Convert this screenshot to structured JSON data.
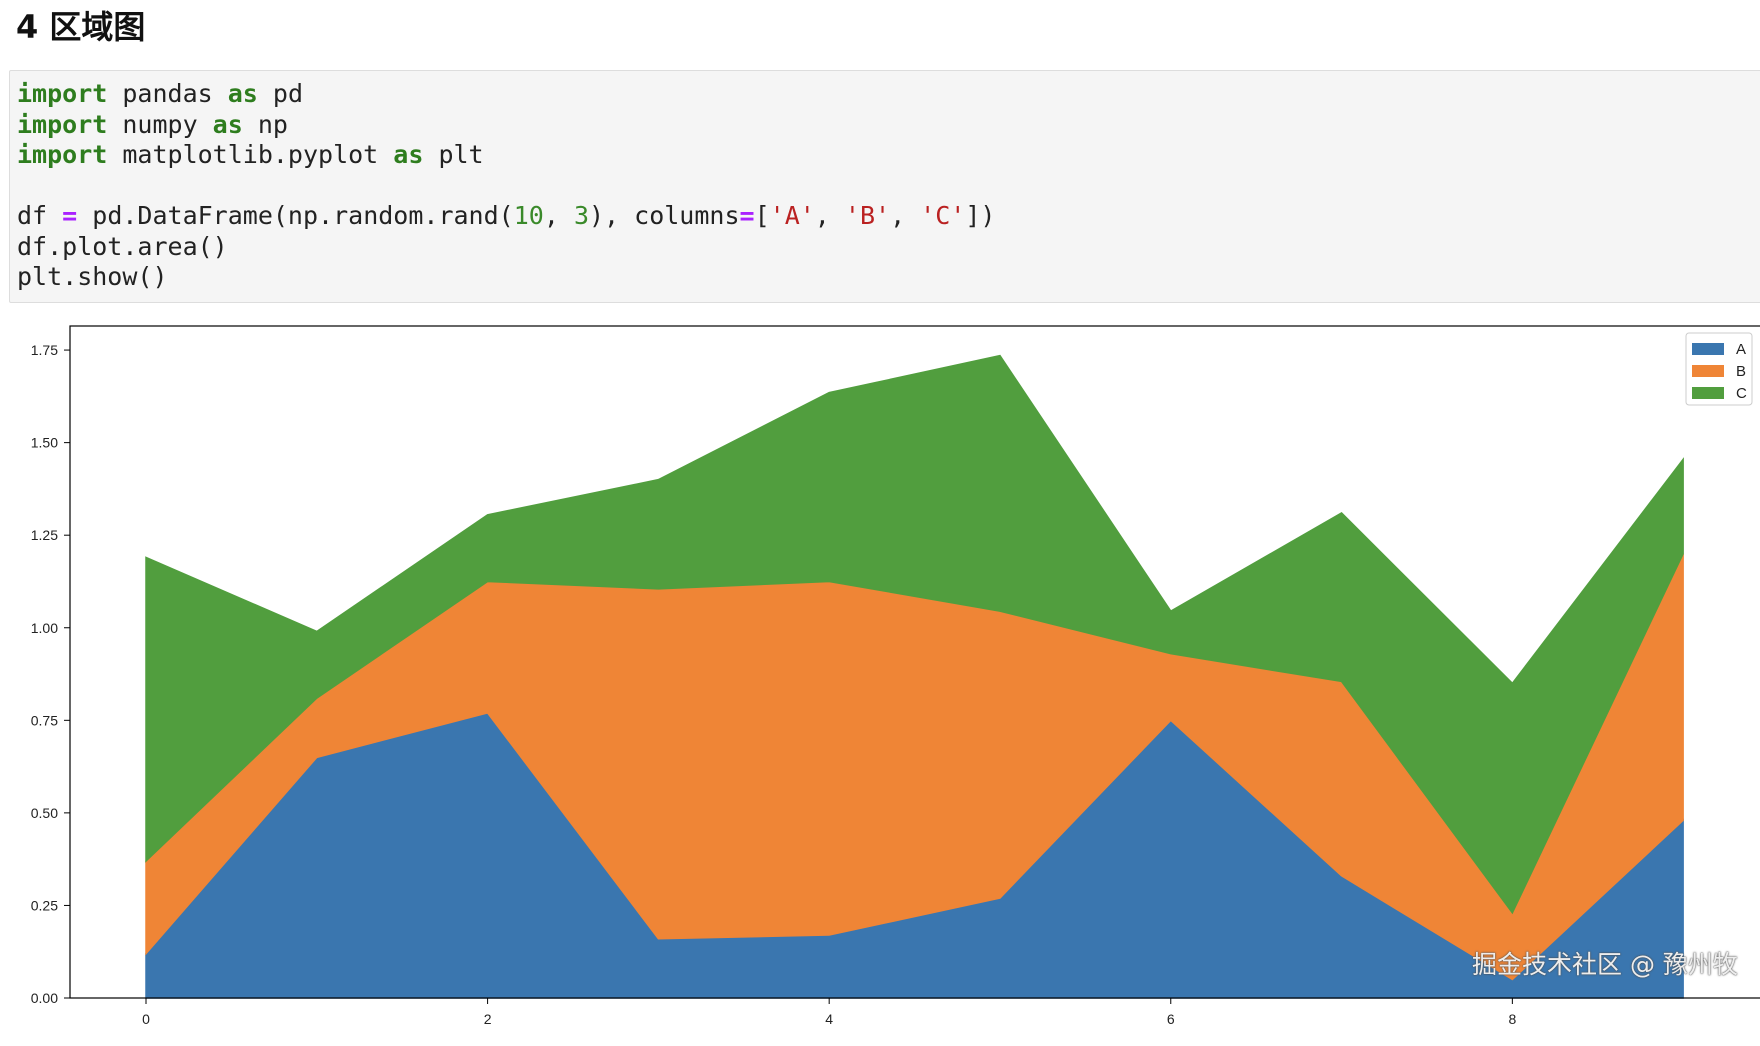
{
  "heading": "4 区域图",
  "code": {
    "lines": [
      [
        {
          "t": "import",
          "c": "kw"
        },
        {
          "t": " pandas "
        },
        {
          "t": "as",
          "c": "kw"
        },
        {
          "t": " pd"
        }
      ],
      [
        {
          "t": "import",
          "c": "kw"
        },
        {
          "t": " numpy "
        },
        {
          "t": "as",
          "c": "kw"
        },
        {
          "t": " np"
        }
      ],
      [
        {
          "t": "import",
          "c": "kw"
        },
        {
          "t": " matplotlib.pyplot "
        },
        {
          "t": "as",
          "c": "kw"
        },
        {
          "t": " plt"
        }
      ],
      [],
      [
        {
          "t": "df "
        },
        {
          "t": "=",
          "c": "op"
        },
        {
          "t": " pd.DataFrame(np.random.rand("
        },
        {
          "t": "10",
          "c": "num"
        },
        {
          "t": ", "
        },
        {
          "t": "3",
          "c": "num"
        },
        {
          "t": "), columns"
        },
        {
          "t": "=",
          "c": "op"
        },
        {
          "t": "["
        },
        {
          "t": "'A'",
          "c": "str"
        },
        {
          "t": ", "
        },
        {
          "t": "'B'",
          "c": "str"
        },
        {
          "t": ", "
        },
        {
          "t": "'C'",
          "c": "str"
        },
        {
          "t": "])"
        }
      ],
      [
        {
          "t": "df.plot.area()"
        }
      ],
      [
        {
          "t": "plt.show()"
        }
      ]
    ]
  },
  "chart_data": {
    "type": "area",
    "stacked": true,
    "x": [
      0,
      1,
      2,
      3,
      4,
      5,
      6,
      7,
      8,
      9
    ],
    "series": [
      {
        "name": "A",
        "color": "#3a76af",
        "values": [
          0.12,
          0.65,
          0.77,
          0.16,
          0.17,
          0.27,
          0.75,
          0.33,
          0.05,
          0.48
        ]
      },
      {
        "name": "B",
        "color": "#ef8536",
        "values": [
          0.25,
          0.16,
          0.355,
          0.945,
          0.955,
          0.775,
          0.18,
          0.525,
          0.18,
          0.72
        ]
      },
      {
        "name": "C",
        "color": "#519e3e",
        "values": [
          0.82,
          0.18,
          0.18,
          0.295,
          0.51,
          0.69,
          0.115,
          0.455,
          0.62,
          0.255
        ]
      }
    ],
    "xlim": [
      -0.445,
      9.45
    ],
    "ylim": [
      0,
      1.815
    ],
    "xticks": [
      0,
      2,
      4,
      6,
      8
    ],
    "xtick_labels": [
      "0",
      "2",
      "4",
      "6",
      "8"
    ],
    "yticks": [
      0,
      0.25,
      0.5,
      0.75,
      1.0,
      1.25,
      1.5,
      1.75
    ],
    "ytick_labels": [
      "0.00",
      "0.25",
      "0.50",
      "0.75",
      "1.00",
      "1.25",
      "1.50",
      "1.75"
    ],
    "legend_position": "top-right",
    "grid": false
  },
  "watermark": "掘金技术社区 @ 豫州牧"
}
